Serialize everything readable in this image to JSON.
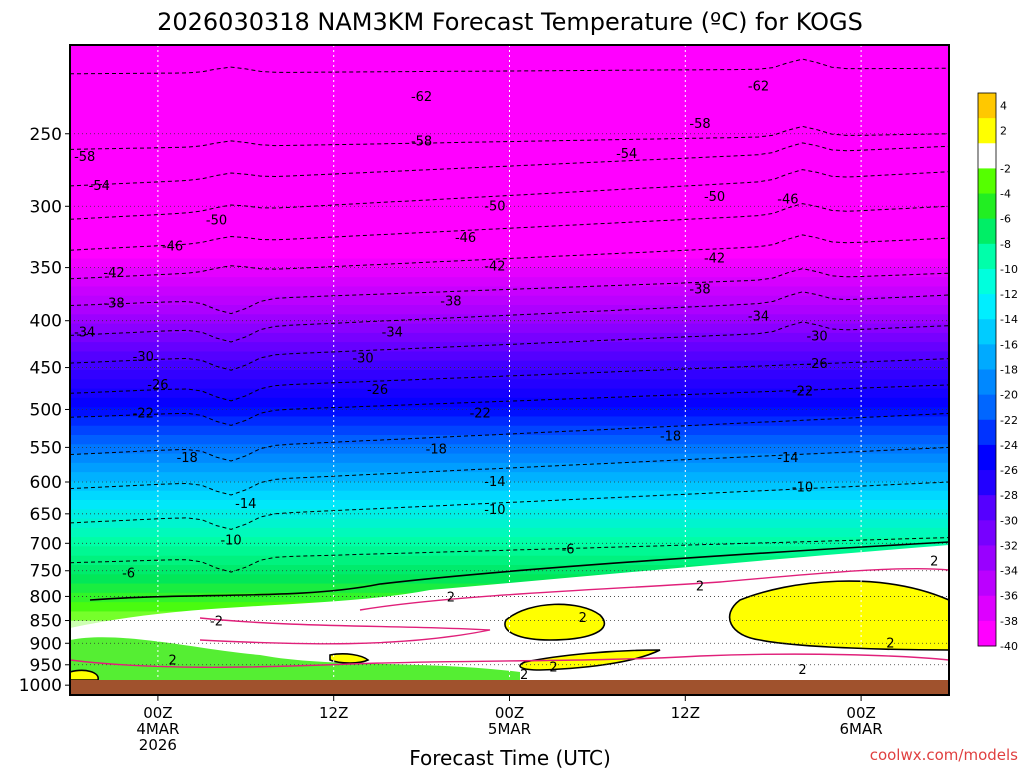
{
  "chart_data": {
    "type": "heatmap",
    "title": "2026030318 NAM3KM Forecast Temperature (ºC) for KOGS",
    "xlabel": "Forecast Time (UTC)",
    "ylabel": "",
    "credit": "coolwx.com/models",
    "x_range_hours": [
      0,
      60
    ],
    "y_range_hpa": [
      200,
      1025
    ],
    "y_scale": "log",
    "grid": true,
    "y_ticks": [
      250,
      300,
      350,
      400,
      450,
      500,
      550,
      600,
      650,
      700,
      750,
      800,
      850,
      900,
      950,
      1000
    ],
    "x_ticks": [
      {
        "hour": 6,
        "lines": [
          "00Z",
          "4MAR",
          "2026"
        ]
      },
      {
        "hour": 18,
        "lines": [
          "12Z"
        ]
      },
      {
        "hour": 30,
        "lines": [
          "00Z",
          "5MAR"
        ]
      },
      {
        "hour": 42,
        "lines": [
          "12Z"
        ]
      },
      {
        "hour": 54,
        "lines": [
          "00Z",
          "6MAR"
        ]
      }
    ],
    "colorbar_labels": [
      "4",
      "2",
      "-2",
      "-4",
      "-6",
      "-8",
      "-10",
      "-12",
      "-14",
      "-16",
      "-18",
      "-20",
      "-22",
      "-24",
      "-26",
      "-28",
      "-30",
      "-32",
      "-34",
      "-36",
      "-38",
      "-40"
    ],
    "colorbar_colors": [
      "#ffc800",
      "#ffff00",
      "#ffffff",
      "#55ff00",
      "#22ee22",
      "#00ee66",
      "#00ffaa",
      "#00ffdd",
      "#00eeff",
      "#00ccff",
      "#00aaff",
      "#0088ff",
      "#0066ff",
      "#0033ff",
      "#0000ff",
      "#2200ff",
      "#5500ff",
      "#7700ff",
      "#9900ff",
      "#bb00ff",
      "#dd00ff",
      "#ff00ff"
    ],
    "ground_color": "#a0522d",
    "contours": [
      {
        "temp": -62,
        "p_start": 215,
        "p_end": 212
      },
      {
        "temp": -58,
        "p_start": 260,
        "p_end": 250
      },
      {
        "temp": -54,
        "p_start": 285,
        "p_end": 258
      },
      {
        "temp": -50,
        "p_start": 310,
        "p_end": 275
      },
      {
        "temp": -46,
        "p_start": 335,
        "p_end": 300
      },
      {
        "temp": -42,
        "p_start": 360,
        "p_end": 325
      },
      {
        "temp": -38,
        "p_start": 385,
        "p_end": 355
      },
      {
        "temp": -34,
        "p_start": 415,
        "p_end": 375
      },
      {
        "temp": -30,
        "p_start": 445,
        "p_end": 405
      },
      {
        "temp": -26,
        "p_start": 480,
        "p_end": 440
      },
      {
        "temp": -22,
        "p_start": 510,
        "p_end": 470
      },
      {
        "temp": -18,
        "p_start": 560,
        "p_end": 505
      },
      {
        "temp": -14,
        "p_start": 610,
        "p_end": 550
      },
      {
        "temp": -10,
        "p_start": 665,
        "p_end": 600
      },
      {
        "temp": -6,
        "p_start": 735,
        "p_end": 690
      }
    ],
    "contour_labels": [
      {
        "text": "-62",
        "hour": 24,
        "p": 228
      },
      {
        "text": "-62",
        "hour": 47,
        "p": 222
      },
      {
        "text": "-58",
        "hour": 1,
        "p": 265
      },
      {
        "text": "-58",
        "hour": 24,
        "p": 255
      },
      {
        "text": "-58",
        "hour": 43,
        "p": 244
      },
      {
        "text": "-54",
        "hour": 2,
        "p": 285
      },
      {
        "text": "-54",
        "hour": 38,
        "p": 263
      },
      {
        "text": "-50",
        "hour": 10,
        "p": 311
      },
      {
        "text": "-50",
        "hour": 29,
        "p": 300
      },
      {
        "text": "-50",
        "hour": 44,
        "p": 293
      },
      {
        "text": "-46",
        "hour": 49,
        "p": 295
      },
      {
        "text": "-46",
        "hour": 7,
        "p": 332
      },
      {
        "text": "-46",
        "hour": 27,
        "p": 325
      },
      {
        "text": "-42",
        "hour": 3,
        "p": 355
      },
      {
        "text": "-42",
        "hour": 29,
        "p": 349
      },
      {
        "text": "-42",
        "hour": 44,
        "p": 342
      },
      {
        "text": "-38",
        "hour": 3,
        "p": 383
      },
      {
        "text": "-38",
        "hour": 26,
        "p": 381
      },
      {
        "text": "-38",
        "hour": 43,
        "p": 370
      },
      {
        "text": "-34",
        "hour": 1,
        "p": 412
      },
      {
        "text": "-34",
        "hour": 22,
        "p": 412
      },
      {
        "text": "-34",
        "hour": 47,
        "p": 396
      },
      {
        "text": "-30",
        "hour": 5,
        "p": 438
      },
      {
        "text": "-30",
        "hour": 20,
        "p": 440
      },
      {
        "text": "-30",
        "hour": 51,
        "p": 416
      },
      {
        "text": "-26",
        "hour": 6,
        "p": 470
      },
      {
        "text": "-26",
        "hour": 21,
        "p": 476
      },
      {
        "text": "-26",
        "hour": 51,
        "p": 446
      },
      {
        "text": "-22",
        "hour": 5,
        "p": 505
      },
      {
        "text": "-22",
        "hour": 28,
        "p": 505
      },
      {
        "text": "-22",
        "hour": 50,
        "p": 478
      },
      {
        "text": "-18",
        "hour": 8,
        "p": 565
      },
      {
        "text": "-18",
        "hour": 25,
        "p": 553
      },
      {
        "text": "-18",
        "hour": 41,
        "p": 535
      },
      {
        "text": "-14",
        "hour": 12,
        "p": 634
      },
      {
        "text": "-14",
        "hour": 29,
        "p": 600
      },
      {
        "text": "-14",
        "hour": 49,
        "p": 565
      },
      {
        "text": "-10",
        "hour": 11,
        "p": 695
      },
      {
        "text": "-10",
        "hour": 29,
        "p": 644
      },
      {
        "text": "-10",
        "hour": 50,
        "p": 608
      },
      {
        "text": "-6",
        "hour": 4,
        "p": 755
      },
      {
        "text": "-6",
        "hour": 34,
        "p": 711
      },
      {
        "text": "2",
        "hour": 26,
        "p": 802
      },
      {
        "text": "2",
        "hour": 43,
        "p": 780
      },
      {
        "text": "2",
        "hour": 59,
        "p": 733
      },
      {
        "text": "-2",
        "hour": 10,
        "p": 852
      },
      {
        "text": "2",
        "hour": 35,
        "p": 845
      },
      {
        "text": "2",
        "hour": 56,
        "p": 900
      },
      {
        "text": "2",
        "hour": 7,
        "p": 940
      },
      {
        "text": "2",
        "hour": 33,
        "p": 957
      },
      {
        "text": "2",
        "hour": 31,
        "p": 975
      },
      {
        "text": "2",
        "hour": 50,
        "p": 962
      }
    ]
  }
}
